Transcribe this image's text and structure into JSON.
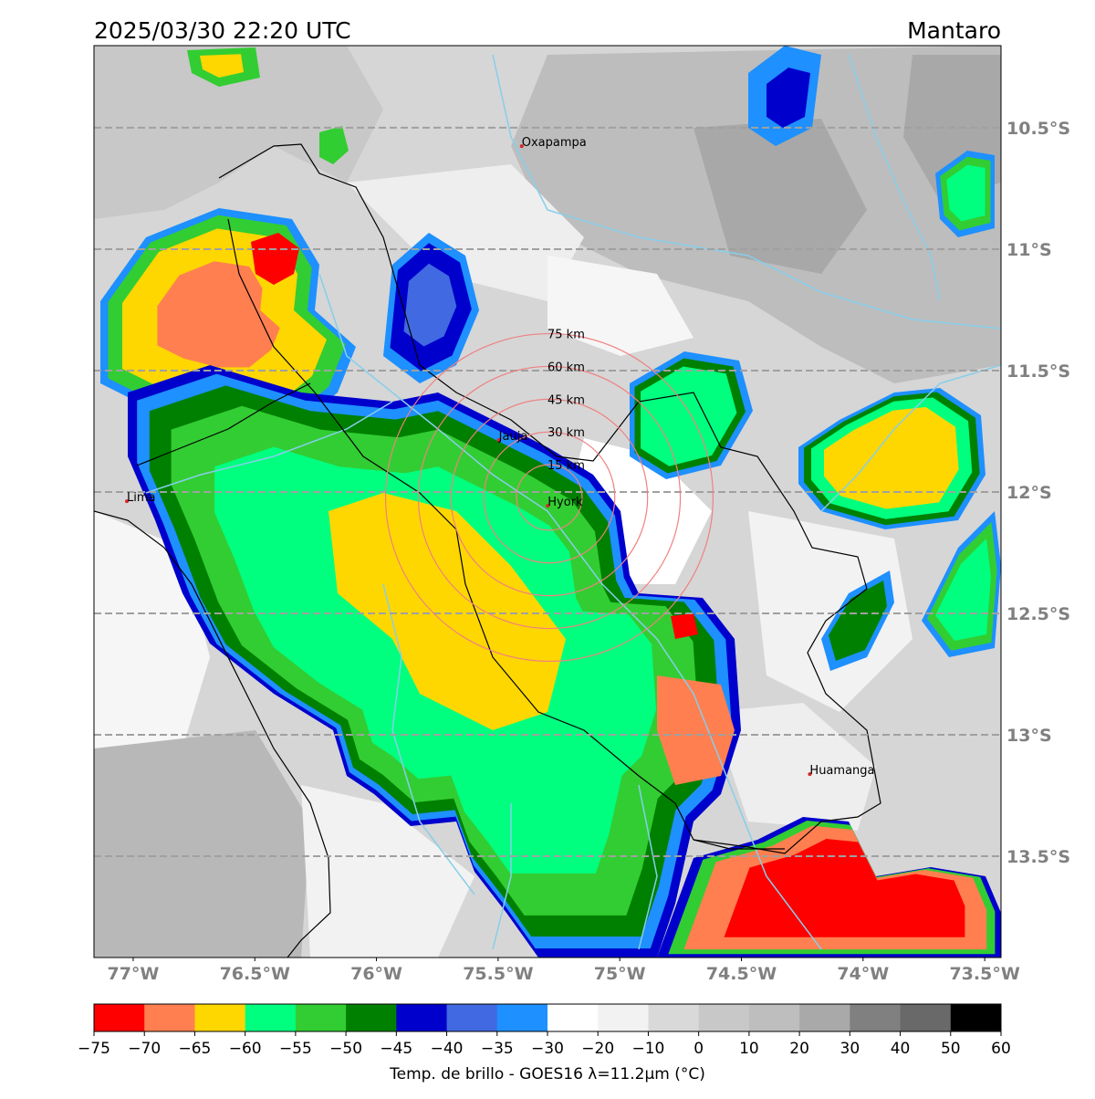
{
  "header": {
    "title": "2025/03/30 22:20 UTC",
    "region": "Mantaro"
  },
  "map": {
    "extent": {
      "lon": [
        -77.161,
        -73.433
      ],
      "lat": [
        -13.917,
        -10.162
      ]
    },
    "lat_ticks": [
      {
        "value": -10.5,
        "label": "10.5°S"
      },
      {
        "value": -11,
        "label": "11°S"
      },
      {
        "value": -11.5,
        "label": "11.5°S"
      },
      {
        "value": -12,
        "label": "12°S"
      },
      {
        "value": -12.5,
        "label": "12.5°S"
      },
      {
        "value": -13,
        "label": "13°S"
      },
      {
        "value": -13.5,
        "label": "13.5°S"
      }
    ],
    "lon_ticks": [
      {
        "value": -77,
        "label": "77°W"
      },
      {
        "value": -76.5,
        "label": "76.5°W"
      },
      {
        "value": -76,
        "label": "76°W"
      },
      {
        "value": -75.5,
        "label": "75.5°W"
      },
      {
        "value": -75,
        "label": "75°W"
      },
      {
        "value": -74.5,
        "label": "74.5°W"
      },
      {
        "value": -74,
        "label": "74°W"
      },
      {
        "value": -73.5,
        "label": "73.5°W"
      }
    ],
    "cities": [
      {
        "name": "Oxapampa",
        "lon": -75.403,
        "lat": -10.576
      },
      {
        "name": "Lima",
        "lon": -77.026,
        "lat": -12.038
      },
      {
        "name": "Jauja",
        "lon": -75.497,
        "lat": -11.786
      },
      {
        "name": "Hyork",
        "lon": -75.296,
        "lat": -12.057
      },
      {
        "name": "Huamanga",
        "lon": -74.219,
        "lat": -13.162
      }
    ],
    "range_rings": [
      {
        "radius_km": 15,
        "label": "15 km"
      },
      {
        "radius_km": 30,
        "label": "30 km"
      },
      {
        "radius_km": 45,
        "label": "45 km"
      },
      {
        "radius_km": 60,
        "label": "60 km"
      },
      {
        "radius_km": 75,
        "label": "75 km"
      }
    ]
  },
  "colorbar": {
    "colors": [
      "#ff0000",
      "#ff7f50",
      "#ffd700",
      "#00ff7f",
      "#32cd32",
      "#008000",
      "#0000cd",
      "#4169e1",
      "#1e90ff",
      "#ffffff",
      "#f2f2f2",
      "#d9d9d9",
      "#c8c8c8",
      "#bebebe",
      "#a9a9a9",
      "#808080",
      "#696969",
      "#000000"
    ],
    "ticks": [
      {
        "value": -75,
        "label": "−75"
      },
      {
        "value": -70,
        "label": "−70"
      },
      {
        "value": -65,
        "label": "−65"
      },
      {
        "value": -60,
        "label": "−60"
      },
      {
        "value": -55,
        "label": "−55"
      },
      {
        "value": -50,
        "label": "−50"
      },
      {
        "value": -45,
        "label": "−45"
      },
      {
        "value": -40,
        "label": "−40"
      },
      {
        "value": -35,
        "label": "−35"
      },
      {
        "value": -30,
        "label": "−30"
      },
      {
        "value": -20,
        "label": "−20"
      },
      {
        "value": -10,
        "label": "−10"
      },
      0,
      10,
      20,
      30,
      40,
      50,
      60
    ],
    "label": "Temp. de brillo - GOES16 λ=11.2μm (°C)"
  }
}
